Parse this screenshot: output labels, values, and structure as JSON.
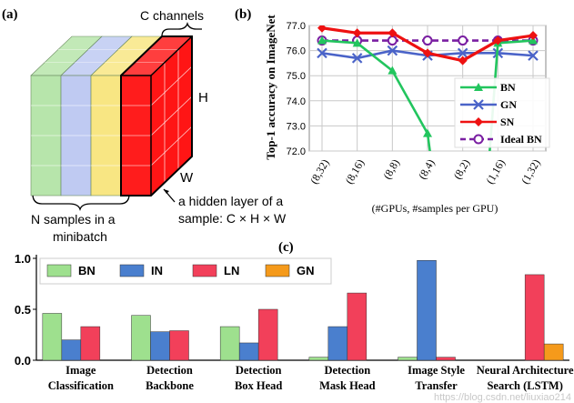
{
  "panels": {
    "a": {
      "label": "(a)",
      "c_label": "C channels",
      "h_label": "H",
      "w_label": "W",
      "n_label_1": "N samples in a",
      "n_label_2": "minibatch",
      "sample_label_1": "a hidden layer of a",
      "sample_label_2": "sample: C × H × W",
      "colors": {
        "green": "#9fdc8f",
        "blue": "#a9b8ee",
        "yellow": "#f6de5a",
        "red": "#ff1010"
      }
    },
    "b": {
      "label": "(b)"
    },
    "c": {
      "label": "(c)"
    }
  },
  "watermark": "https://blog.csdn.net/liuxiao214",
  "chart_data": [
    {
      "type": "line",
      "ylabel": "Top-1 accuracy on ImageNet",
      "xlabel": "(#GPUs, #samples per GPU)",
      "categories": [
        "(8,32)",
        "(8,16)",
        "(8,8)",
        "(8,4)",
        "(8,2)",
        "(1,16)",
        "(1,32)"
      ],
      "ylim": [
        72.0,
        77.0
      ],
      "yticks": [
        "77.0",
        "76.0",
        "75.0",
        "74.0",
        "73.0",
        "72.0"
      ],
      "grid": true,
      "legend_position": "right",
      "series": [
        {
          "name": "BN",
          "color": "#22c55e",
          "marker": "triangle",
          "dash": false,
          "values": [
            76.4,
            76.3,
            75.2,
            72.7,
            null,
            76.3,
            76.4
          ]
        },
        {
          "name": "GN",
          "color": "#4a63c8",
          "marker": "x",
          "dash": false,
          "values": [
            75.9,
            75.7,
            76.0,
            75.8,
            75.9,
            75.9,
            75.8
          ]
        },
        {
          "name": "SN",
          "color": "#ee1111",
          "marker": "diamond",
          "dash": false,
          "values": [
            76.9,
            76.7,
            76.7,
            75.9,
            75.6,
            76.4,
            76.6
          ]
        },
        {
          "name": "Ideal BN",
          "color": "#7a1fa2",
          "marker": "circle",
          "dash": true,
          "values": [
            76.4,
            76.4,
            76.4,
            76.4,
            76.4,
            76.4,
            76.4
          ]
        }
      ],
      "bn_dropoff": {
        "from_index": 3,
        "to_index": 5
      }
    },
    {
      "type": "bar",
      "categories": [
        [
          "Image",
          "Classification"
        ],
        [
          "Detection",
          "Backbone"
        ],
        [
          "Detection",
          "Box Head"
        ],
        [
          "Detection",
          "Mask Head"
        ],
        [
          "Image Style",
          "Transfer"
        ],
        [
          "Neural Architecture",
          "Search (LSTM)"
        ]
      ],
      "ylim": [
        0,
        1.0
      ],
      "yticks": [
        "1.0",
        "0.5",
        "0.0"
      ],
      "legend_position": "top-left",
      "series": [
        {
          "name": "BN",
          "color": "#9ee08e",
          "values": [
            0.46,
            0.44,
            0.33,
            0.03,
            0.03,
            0.0
          ]
        },
        {
          "name": "IN",
          "color": "#4a7fce",
          "values": [
            0.2,
            0.28,
            0.17,
            0.33,
            0.98,
            0.0
          ]
        },
        {
          "name": "LN",
          "color": "#f2405a",
          "values": [
            0.33,
            0.29,
            0.5,
            0.66,
            0.03,
            0.84
          ]
        },
        {
          "name": "GN",
          "color": "#f59a1b",
          "values": [
            0.0,
            0.0,
            0.0,
            0.0,
            0.0,
            0.16
          ]
        }
      ]
    }
  ]
}
